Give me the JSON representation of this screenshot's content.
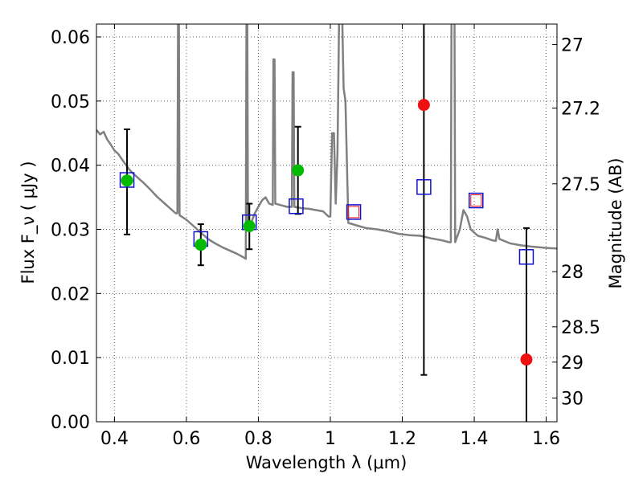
{
  "chart_data": {
    "type": "scatter",
    "title": "",
    "xlabel": "Wavelength  λ (μm)",
    "ylabel": "Flux  F_ν  ( μJy )",
    "y2label": "Magnitude (AB)",
    "xlim": [
      0.35,
      1.63
    ],
    "ylim": [
      0.0,
      0.062
    ],
    "grid": true,
    "x_ticks": [
      0.4,
      0.6,
      0.8,
      1.0,
      1.2,
      1.4,
      1.6
    ],
    "x_tick_labels": [
      "0.4",
      "0.6",
      "0.8",
      "1",
      "1.2",
      "1.4",
      "1.6"
    ],
    "y_ticks": [
      0.0,
      0.01,
      0.02,
      0.03,
      0.04,
      0.05,
      0.06
    ],
    "y_tick_labels": [
      "0.00",
      "0.01",
      "0.02",
      "0.03",
      "0.04",
      "0.05",
      "0.06"
    ],
    "y2_ticks": [
      {
        "label": "27",
        "flux": 0.0588
      },
      {
        "label": "27.2",
        "flux": 0.0489
      },
      {
        "label": "27.5",
        "flux": 0.0371
      },
      {
        "label": "28",
        "flux": 0.0234
      },
      {
        "label": "28.5",
        "flux": 0.0148
      },
      {
        "label": "29",
        "flux": 0.0093
      },
      {
        "label": "30",
        "flux": 0.0037
      }
    ],
    "colors": {
      "model": "#808080",
      "observed": "#00bb00",
      "upper_limit": "#ee1111",
      "model_band": "#1111cc",
      "model_band_inner": "#ee1111",
      "errorbar": "#000000",
      "grid": "#666666"
    },
    "series": [
      {
        "type": "line",
        "values": [
          [
            0.35,
            0.0455
          ],
          [
            0.36,
            0.0448
          ],
          [
            0.37,
            0.0452
          ],
          [
            0.38,
            0.044
          ],
          [
            0.39,
            0.0432
          ],
          [
            0.4,
            0.0423
          ],
          [
            0.41,
            0.0418
          ],
          [
            0.42,
            0.041
          ],
          [
            0.43,
            0.0402
          ],
          [
            0.44,
            0.0394
          ],
          [
            0.45,
            0.0388
          ],
          [
            0.46,
            0.0383
          ],
          [
            0.47,
            0.0378
          ],
          [
            0.48,
            0.0373
          ],
          [
            0.5,
            0.0362
          ],
          [
            0.52,
            0.035
          ],
          [
            0.54,
            0.034
          ],
          [
            0.56,
            0.033
          ],
          [
            0.57,
            0.0325
          ],
          [
            0.575,
            0.0325
          ],
          [
            0.577,
            0.066
          ],
          [
            0.579,
            0.066
          ],
          [
            0.581,
            0.0322
          ],
          [
            0.6,
            0.0315
          ],
          [
            0.62,
            0.0305
          ],
          [
            0.64,
            0.0295
          ],
          [
            0.66,
            0.0285
          ],
          [
            0.68,
            0.0278
          ],
          [
            0.7,
            0.0272
          ],
          [
            0.72,
            0.0267
          ],
          [
            0.74,
            0.0262
          ],
          [
            0.76,
            0.0256
          ],
          [
            0.765,
            0.0254
          ],
          [
            0.767,
            0.066
          ],
          [
            0.769,
            0.066
          ],
          [
            0.771,
            0.03
          ],
          [
            0.78,
            0.031
          ],
          [
            0.79,
            0.0325
          ],
          [
            0.8,
            0.0335
          ],
          [
            0.81,
            0.0345
          ],
          [
            0.82,
            0.035
          ],
          [
            0.83,
            0.034
          ],
          [
            0.84,
            0.0338
          ],
          [
            0.842,
            0.0565
          ],
          [
            0.845,
            0.0565
          ],
          [
            0.847,
            0.034
          ],
          [
            0.86,
            0.0338
          ],
          [
            0.88,
            0.0335
          ],
          [
            0.893,
            0.0335
          ],
          [
            0.895,
            0.0545
          ],
          [
            0.898,
            0.0545
          ],
          [
            0.9,
            0.0335
          ],
          [
            0.92,
            0.0333
          ],
          [
            0.94,
            0.0332
          ],
          [
            0.96,
            0.033
          ],
          [
            0.98,
            0.0328
          ],
          [
            0.995,
            0.032
          ],
          [
            1.0,
            0.032
          ],
          [
            1.005,
            0.045
          ],
          [
            1.01,
            0.045
          ],
          [
            1.015,
            0.034
          ],
          [
            1.02,
            0.042
          ],
          [
            1.025,
            0.066
          ],
          [
            1.032,
            0.066
          ],
          [
            1.037,
            0.052
          ],
          [
            1.042,
            0.05
          ],
          [
            1.05,
            0.031
          ],
          [
            1.08,
            0.0305
          ],
          [
            1.1,
            0.0302
          ],
          [
            1.13,
            0.03
          ],
          [
            1.16,
            0.0297
          ],
          [
            1.19,
            0.0293
          ],
          [
            1.22,
            0.0291
          ],
          [
            1.25,
            0.029
          ],
          [
            1.28,
            0.0286
          ],
          [
            1.31,
            0.0283
          ],
          [
            1.33,
            0.028
          ],
          [
            1.335,
            0.028
          ],
          [
            1.337,
            0.066
          ],
          [
            1.345,
            0.066
          ],
          [
            1.347,
            0.028
          ],
          [
            1.36,
            0.03
          ],
          [
            1.37,
            0.033
          ],
          [
            1.38,
            0.032
          ],
          [
            1.39,
            0.03
          ],
          [
            1.41,
            0.029
          ],
          [
            1.43,
            0.0287
          ],
          [
            1.45,
            0.0283
          ],
          [
            1.46,
            0.0282
          ],
          [
            1.465,
            0.03
          ],
          [
            1.47,
            0.0285
          ],
          [
            1.5,
            0.0278
          ],
          [
            1.53,
            0.0275
          ],
          [
            1.56,
            0.0273
          ],
          [
            1.6,
            0.0271
          ],
          [
            1.63,
            0.027
          ]
        ]
      },
      {
        "type": "scatter",
        "marker": "circle",
        "color": "#00bb00",
        "points": [
          {
            "x": 0.435,
            "y": 0.0376,
            "err": [
              0.0292,
              0.0456
            ]
          },
          {
            "x": 0.64,
            "y": 0.0276,
            "err": [
              0.0244,
              0.0308
            ]
          },
          {
            "x": 0.775,
            "y": 0.0305,
            "err": [
              0.0269,
              0.034
            ]
          },
          {
            "x": 0.91,
            "y": 0.0392,
            "err": [
              0.0324,
              0.046
            ]
          }
        ]
      },
      {
        "type": "scatter",
        "marker": "circle",
        "color": "#ee1111",
        "points": [
          {
            "x": 1.26,
            "y": 0.0494,
            "err": [
              0.0073,
              0.068
            ]
          },
          {
            "x": 1.545,
            "y": 0.0097,
            "err": [
              0.0,
              0.0302
            ]
          }
        ]
      },
      {
        "type": "scatter",
        "marker": "square",
        "color": "#1111cc",
        "points": [
          {
            "x": 0.435,
            "y": 0.0377
          },
          {
            "x": 0.64,
            "y": 0.0285
          },
          {
            "x": 0.775,
            "y": 0.0311
          },
          {
            "x": 0.905,
            "y": 0.0336
          },
          {
            "x": 1.065,
            "y": 0.0327
          },
          {
            "x": 1.26,
            "y": 0.0366
          },
          {
            "x": 1.405,
            "y": 0.0345
          },
          {
            "x": 1.545,
            "y": 0.0257
          }
        ]
      }
    ],
    "inner_square_points": [
      {
        "x": 1.065,
        "y": 0.0327
      },
      {
        "x": 1.405,
        "y": 0.0345
      }
    ]
  }
}
